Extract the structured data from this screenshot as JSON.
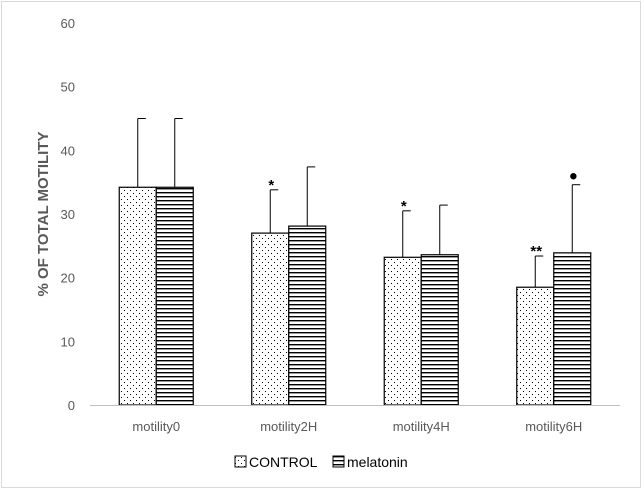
{
  "chart_data": {
    "type": "bar",
    "title": "",
    "xlabel": "",
    "ylabel": "% OF TOTAL MOTILITY",
    "ylim": [
      0,
      60
    ],
    "yticks": [
      0,
      10,
      20,
      30,
      40,
      50,
      60
    ],
    "grid": false,
    "legend_position": "bottom",
    "categories": [
      "motility0",
      "motility2H",
      "motility4H",
      "motility6H"
    ],
    "series": [
      {
        "name": "CONTROL",
        "pattern": "dots",
        "values": [
          34.2,
          27.0,
          23.2,
          18.5
        ],
        "errors": [
          10.8,
          6.8,
          7.3,
          4.9
        ]
      },
      {
        "name": "melatonin",
        "pattern": "horizontal-lines",
        "values": [
          34.2,
          28.1,
          23.6,
          23.9
        ],
        "errors": [
          10.8,
          9.3,
          7.8,
          10.7
        ]
      }
    ],
    "annotations": [
      {
        "series": 0,
        "category": 1,
        "text": "*"
      },
      {
        "series": 0,
        "category": 2,
        "text": "*"
      },
      {
        "series": 0,
        "category": 3,
        "text": "**"
      },
      {
        "series": 1,
        "category": 3,
        "text": "●"
      }
    ]
  }
}
